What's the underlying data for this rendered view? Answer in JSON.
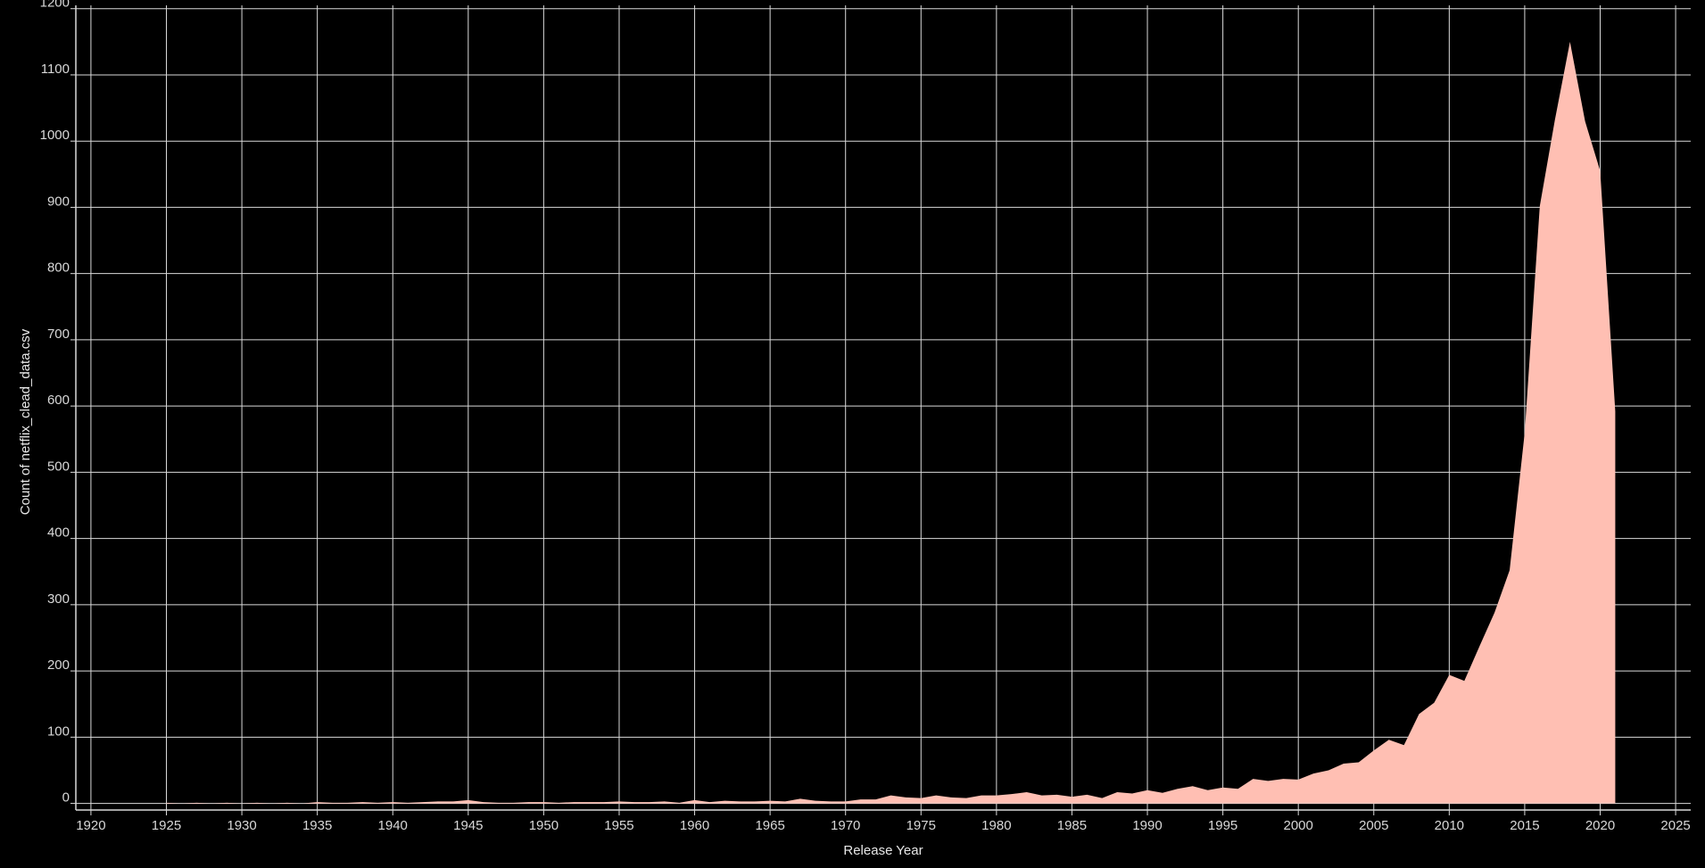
{
  "chart_data": {
    "type": "area",
    "title": "",
    "xlabel": "Release Year",
    "ylabel": "Count of netflix_clead_data.csv",
    "xlim": [
      1919,
      2026
    ],
    "ylim": [
      -10,
      1205
    ],
    "xticks": [
      1920,
      1925,
      1930,
      1935,
      1940,
      1945,
      1950,
      1955,
      1960,
      1965,
      1970,
      1975,
      1980,
      1985,
      1990,
      1995,
      2000,
      2005,
      2010,
      2015,
      2020,
      2025
    ],
    "yticks": [
      0,
      100,
      200,
      300,
      400,
      500,
      600,
      700,
      800,
      900,
      1000,
      1100,
      1200
    ],
    "grid": true,
    "fill_color": "#FFBFB3",
    "grid_color": "#D9D9D9",
    "background_color": "#000000",
    "x": [
      1925,
      1926,
      1927,
      1928,
      1929,
      1930,
      1931,
      1932,
      1933,
      1934,
      1935,
      1936,
      1937,
      1938,
      1939,
      1940,
      1941,
      1942,
      1943,
      1944,
      1945,
      1946,
      1947,
      1948,
      1949,
      1950,
      1951,
      1952,
      1953,
      1954,
      1955,
      1956,
      1957,
      1958,
      1959,
      1960,
      1961,
      1962,
      1963,
      1964,
      1965,
      1966,
      1967,
      1968,
      1969,
      1970,
      1971,
      1972,
      1973,
      1974,
      1975,
      1976,
      1977,
      1978,
      1979,
      1980,
      1981,
      1982,
      1983,
      1984,
      1985,
      1986,
      1987,
      1988,
      1989,
      1990,
      1991,
      1992,
      1993,
      1994,
      1995,
      1996,
      1997,
      1998,
      1999,
      2000,
      2001,
      2002,
      2003,
      2004,
      2005,
      2006,
      2007,
      2008,
      2009,
      2010,
      2011,
      2012,
      2013,
      2014,
      2015,
      2016,
      2017,
      2018,
      2019,
      2020,
      2021
    ],
    "values": [
      1,
      0,
      1,
      0,
      1,
      0,
      1,
      0,
      1,
      0,
      2,
      1,
      1,
      2,
      1,
      2,
      1,
      2,
      3,
      3,
      5,
      2,
      1,
      1,
      2,
      2,
      1,
      2,
      2,
      2,
      3,
      2,
      2,
      3,
      1,
      5,
      2,
      4,
      3,
      3,
      4,
      3,
      7,
      4,
      3,
      3,
      6,
      6,
      12,
      9,
      8,
      12,
      9,
      8,
      12,
      12,
      14,
      17,
      12,
      13,
      10,
      13,
      8,
      17,
      15,
      20,
      16,
      22,
      26,
      20,
      24,
      22,
      37,
      34,
      37,
      36,
      45,
      50,
      60,
      62,
      80,
      96,
      88,
      135,
      152,
      194,
      185,
      237,
      288,
      352,
      560,
      902,
      1032,
      1150,
      1030,
      955,
      592
    ]
  }
}
